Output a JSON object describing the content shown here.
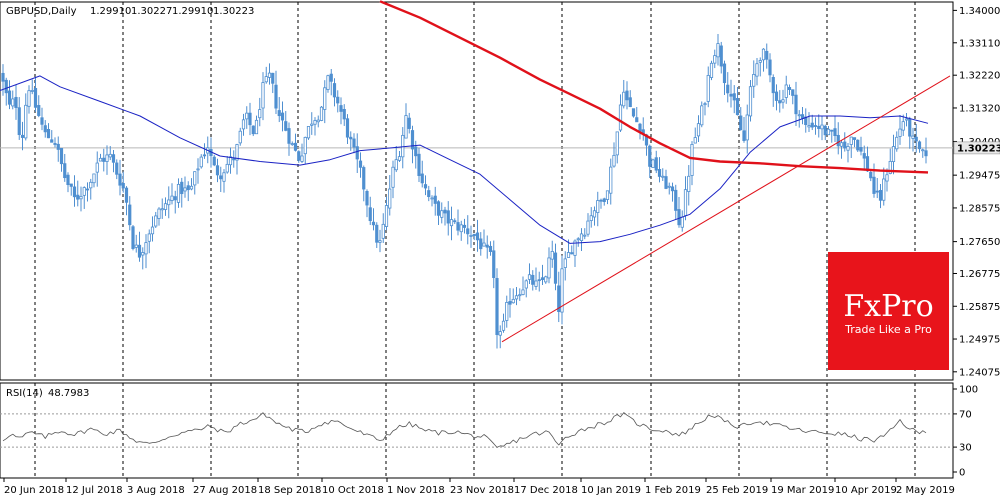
{
  "header": {
    "symbol": "GBPUSD,Daily",
    "open": "1.29910",
    "high": "1.30227",
    "low": "1.29910",
    "close": "1.30223"
  },
  "rsi_header": {
    "label": "RSI(14)",
    "value": "48.7983"
  },
  "logo": {
    "brand": "FxPro",
    "tagline": "Trade Like a Pro",
    "bg_color": "#e8141b"
  },
  "colors": {
    "candle": "#4f8fd0",
    "ma_fast": "#1a22c4",
    "ma_slow": "#e0111a",
    "trendline": "#e0111a",
    "price_tag": "#e8e8e8",
    "rsi_line": "#555555"
  },
  "chart_data": [
    {
      "type": "candlestick",
      "instrument": "GBPUSD",
      "timeframe": "Daily",
      "y_ticks": [
        "1.34000",
        "1.33110",
        "1.32220",
        "1.31320",
        "1.30400",
        "1.29475",
        "1.28575",
        "1.27650",
        "1.26775",
        "1.25875",
        "1.24975",
        "1.24075"
      ],
      "ylim": [
        1.2385,
        1.3423
      ],
      "current_price": "1.30223",
      "x_ticks": [
        "20 Jun 2018",
        "12 Jul 2018",
        "3 Aug 2018",
        "27 Aug 2018",
        "18 Sep 2018",
        "10 Oct 2018",
        "1 Nov 2018",
        "23 Nov 2018",
        "17 Dec 2018",
        "10 Jan 2019",
        "1 Feb 2019",
        "25 Feb 2019",
        "19 Mar 2019",
        "10 Apr 2019",
        "2 May 2019"
      ],
      "close_path": [
        [
          0,
          1.323
        ],
        [
          5,
          1.318
        ],
        [
          10,
          1.313
        ],
        [
          15,
          1.316
        ],
        [
          18,
          1.311
        ],
        [
          21,
          1.302
        ],
        [
          28,
          1.32
        ],
        [
          35,
          1.314
        ],
        [
          45,
          1.306
        ],
        [
          55,
          1.304
        ],
        [
          65,
          1.294
        ],
        [
          75,
          1.288
        ],
        [
          90,
          1.293
        ],
        [
          100,
          1.299
        ],
        [
          110,
          1.3
        ],
        [
          125,
          1.29
        ],
        [
          133,
          1.276
        ],
        [
          140,
          1.273
        ],
        [
          150,
          1.28
        ],
        [
          160,
          1.285
        ],
        [
          170,
          1.288
        ],
        [
          180,
          1.291
        ],
        [
          190,
          1.29
        ],
        [
          200,
          1.299
        ],
        [
          208,
          1.303
        ],
        [
          213,
          1.297
        ],
        [
          220,
          1.295
        ],
        [
          228,
          1.298
        ],
        [
          235,
          1.3
        ],
        [
          245,
          1.311
        ],
        [
          255,
          1.306
        ],
        [
          262,
          1.318
        ],
        [
          270,
          1.322
        ],
        [
          278,
          1.312
        ],
        [
          285,
          1.308
        ],
        [
          292,
          1.303
        ],
        [
          300,
          1.299
        ],
        [
          305,
          1.305
        ],
        [
          312,
          1.31
        ],
        [
          320,
          1.312
        ],
        [
          328,
          1.321
        ],
        [
          333,
          1.318
        ],
        [
          340,
          1.313
        ],
        [
          348,
          1.306
        ],
        [
          355,
          1.3
        ],
        [
          362,
          1.294
        ],
        [
          368,
          1.286
        ],
        [
          375,
          1.278
        ],
        [
          380,
          1.276
        ],
        [
          385,
          1.283
        ],
        [
          392,
          1.295
        ],
        [
          400,
          1.302
        ],
        [
          406,
          1.311
        ],
        [
          412,
          1.304
        ],
        [
          420,
          1.295
        ],
        [
          428,
          1.289
        ],
        [
          435,
          1.286
        ],
        [
          445,
          1.283
        ],
        [
          455,
          1.281
        ],
        [
          465,
          1.28
        ],
        [
          475,
          1.278
        ],
        [
          485,
          1.274
        ],
        [
          492,
          1.272
        ],
        [
          497,
          1.252
        ],
        [
          502,
          1.251
        ],
        [
          508,
          1.26
        ],
        [
          515,
          1.262
        ],
        [
          522,
          1.264
        ],
        [
          530,
          1.266
        ],
        [
          538,
          1.264
        ],
        [
          545,
          1.267
        ],
        [
          552,
          1.274
        ],
        [
          558,
          1.256
        ],
        [
          562,
          1.268
        ],
        [
          570,
          1.274
        ],
        [
          578,
          1.278
        ],
        [
          585,
          1.28
        ],
        [
          592,
          1.285
        ],
        [
          600,
          1.287
        ],
        [
          606,
          1.29
        ],
        [
          612,
          1.298
        ],
        [
          618,
          1.308
        ],
        [
          623,
          1.32
        ],
        [
          628,
          1.314
        ],
        [
          635,
          1.31
        ],
        [
          642,
          1.308
        ],
        [
          650,
          1.298
        ],
        [
          656,
          1.297
        ],
        [
          662,
          1.293
        ],
        [
          668,
          1.292
        ],
        [
          675,
          1.287
        ],
        [
          680,
          1.281
        ],
        [
          686,
          1.29
        ],
        [
          692,
          1.302
        ],
        [
          698,
          1.308
        ],
        [
          705,
          1.316
        ],
        [
          712,
          1.328
        ],
        [
          718,
          1.33
        ],
        [
          725,
          1.321
        ],
        [
          732,
          1.316
        ],
        [
          738,
          1.31
        ],
        [
          744,
          1.304
        ],
        [
          750,
          1.317
        ],
        [
          756,
          1.325
        ],
        [
          762,
          1.329
        ],
        [
          768,
          1.324
        ],
        [
          774,
          1.318
        ],
        [
          780,
          1.314
        ],
        [
          786,
          1.32
        ],
        [
          792,
          1.316
        ],
        [
          798,
          1.312
        ],
        [
          806,
          1.308
        ],
        [
          812,
          1.309
        ],
        [
          820,
          1.308
        ],
        [
          828,
          1.306
        ],
        [
          836,
          1.305
        ],
        [
          844,
          1.302
        ],
        [
          852,
          1.306
        ],
        [
          858,
          1.303
        ],
        [
          864,
          1.299
        ],
        [
          870,
          1.295
        ],
        [
          875,
          1.289
        ],
        [
          880,
          1.288
        ],
        [
          886,
          1.295
        ],
        [
          892,
          1.301
        ],
        [
          898,
          1.306
        ],
        [
          903,
          1.31
        ],
        [
          908,
          1.308
        ],
        [
          913,
          1.304
        ],
        [
          918,
          1.302
        ],
        [
          923,
          1.3
        ],
        [
          928,
          1.3022
        ]
      ],
      "ma_fast": [
        [
          0,
          1.318
        ],
        [
          40,
          1.322
        ],
        [
          60,
          1.319
        ],
        [
          100,
          1.315
        ],
        [
          140,
          1.311
        ],
        [
          180,
          1.305
        ],
        [
          220,
          1.3
        ],
        [
          260,
          1.2985
        ],
        [
          300,
          1.2975
        ],
        [
          330,
          1.299
        ],
        [
          360,
          1.3015
        ],
        [
          390,
          1.3022
        ],
        [
          420,
          1.303
        ],
        [
          450,
          1.299
        ],
        [
          480,
          1.295
        ],
        [
          510,
          1.288
        ],
        [
          540,
          1.281
        ],
        [
          570,
          1.276
        ],
        [
          600,
          1.2765
        ],
        [
          630,
          1.2785
        ],
        [
          660,
          1.281
        ],
        [
          690,
          1.284
        ],
        [
          720,
          1.291
        ],
        [
          750,
          1.301
        ],
        [
          780,
          1.308
        ],
        [
          810,
          1.311
        ],
        [
          840,
          1.311
        ],
        [
          870,
          1.3105
        ],
        [
          900,
          1.311
        ],
        [
          928,
          1.309
        ]
      ],
      "ma_slow": [
        [
          380,
          1.3425
        ],
        [
          420,
          1.338
        ],
        [
          460,
          1.3325
        ],
        [
          500,
          1.327
        ],
        [
          540,
          1.321
        ],
        [
          570,
          1.317
        ],
        [
          600,
          1.313
        ],
        [
          630,
          1.308
        ],
        [
          660,
          1.3035
        ],
        [
          690,
          1.2995
        ],
        [
          720,
          1.2985
        ],
        [
          760,
          1.298
        ],
        [
          800,
          1.2972
        ],
        [
          840,
          1.2967
        ],
        [
          880,
          1.296
        ],
        [
          928,
          1.2955
        ]
      ],
      "trendline": {
        "start": [
          502,
          1.249
        ],
        "end": [
          950,
          1.322
        ]
      }
    },
    {
      "type": "line",
      "name": "RSI(14)",
      "y_ticks": [
        "100",
        "70",
        "30",
        "0"
      ],
      "ylim": [
        0,
        100
      ],
      "levels": [
        70,
        30
      ],
      "current_value": "48.7983",
      "values": [
        [
          0,
          36
        ],
        [
          10,
          46
        ],
        [
          20,
          40
        ],
        [
          30,
          48
        ],
        [
          45,
          42
        ],
        [
          60,
          50
        ],
        [
          75,
          45
        ],
        [
          90,
          52
        ],
        [
          105,
          46
        ],
        [
          120,
          50
        ],
        [
          135,
          38
        ],
        [
          150,
          33
        ],
        [
          165,
          41
        ],
        [
          180,
          47
        ],
        [
          195,
          50
        ],
        [
          210,
          55
        ],
        [
          225,
          47
        ],
        [
          240,
          58
        ],
        [
          255,
          64
        ],
        [
          265,
          70
        ],
        [
          275,
          60
        ],
        [
          290,
          52
        ],
        [
          305,
          48
        ],
        [
          320,
          58
        ],
        [
          335,
          62
        ],
        [
          350,
          53
        ],
        [
          365,
          45
        ],
        [
          380,
          38
        ],
        [
          395,
          52
        ],
        [
          410,
          58
        ],
        [
          425,
          50
        ],
        [
          440,
          47
        ],
        [
          455,
          49
        ],
        [
          470,
          44
        ],
        [
          485,
          42
        ],
        [
          497,
          28
        ],
        [
          505,
          32
        ],
        [
          520,
          40
        ],
        [
          535,
          46
        ],
        [
          550,
          48
        ],
        [
          558,
          30
        ],
        [
          565,
          42
        ],
        [
          580,
          50
        ],
        [
          595,
          56
        ],
        [
          610,
          62
        ],
        [
          622,
          70
        ],
        [
          635,
          60
        ],
        [
          650,
          52
        ],
        [
          665,
          50
        ],
        [
          680,
          44
        ],
        [
          695,
          56
        ],
        [
          712,
          70
        ],
        [
          725,
          60
        ],
        [
          740,
          54
        ],
        [
          755,
          62
        ],
        [
          770,
          58
        ],
        [
          785,
          54
        ],
        [
          800,
          50
        ],
        [
          815,
          48
        ],
        [
          830,
          47
        ],
        [
          845,
          45
        ],
        [
          860,
          40
        ],
        [
          875,
          38
        ],
        [
          888,
          46
        ],
        [
          900,
          62
        ],
        [
          910,
          52
        ],
        [
          918,
          47
        ],
        [
          928,
          49
        ]
      ]
    }
  ]
}
